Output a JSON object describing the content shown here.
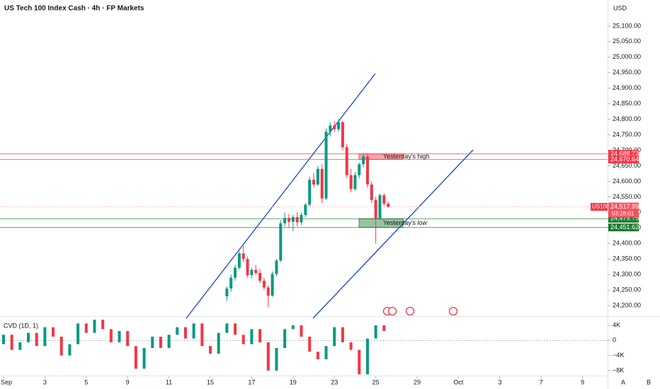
{
  "chart_data": {
    "type": "candlestick",
    "title": "US Tech 100 Index Cash · 4h · FP Markets",
    "currency": "USD",
    "symbol": "US100",
    "countdown": "03:28:01",
    "up_color": "#089981",
    "down_color": "#f23645",
    "x": [
      10.8,
      11.0,
      11.2,
      11.4,
      11.6,
      11.8,
      12.0,
      12.2,
      12.4,
      12.6,
      12.8,
      13.0,
      13.2,
      13.4,
      13.6,
      13.8,
      14.0,
      14.2,
      14.4,
      14.6,
      14.8,
      15.0,
      15.2,
      15.4,
      15.6,
      15.8,
      16.0,
      16.2,
      16.4,
      16.6,
      16.8,
      17.0,
      17.2,
      17.4,
      17.6,
      17.8,
      18.0,
      18.2,
      18.4,
      18.6
    ],
    "open": [
      24230,
      24255,
      24290,
      24322,
      24368,
      24350,
      24298,
      24315,
      24305,
      24280,
      24258,
      24232,
      24302,
      24345,
      24465,
      24482,
      24470,
      24485,
      24468,
      24492,
      24525,
      24605,
      24590,
      24640,
      24545,
      24760,
      24780,
      24768,
      24790,
      24710,
      24620,
      24575,
      24620,
      24655,
      24680,
      24590,
      24540,
      24480,
      24555,
      24528
    ],
    "high": [
      24262,
      24300,
      24330,
      24375,
      24392,
      24358,
      24322,
      24330,
      24318,
      24290,
      24265,
      24310,
      24350,
      24475,
      24500,
      24495,
      24492,
      24500,
      24500,
      24530,
      24615,
      24625,
      24650,
      24655,
      24770,
      24790,
      24795,
      24800,
      24795,
      24720,
      24640,
      24630,
      24660,
      24690,
      24690,
      24600,
      24550,
      24560,
      24562,
      24535
    ],
    "low": [
      24215,
      24245,
      24280,
      24315,
      24340,
      24290,
      24288,
      24298,
      24272,
      24250,
      24195,
      24228,
      24295,
      24340,
      24455,
      24450,
      24440,
      24455,
      24460,
      24485,
      24520,
      24580,
      24585,
      24530,
      24540,
      24745,
      24760,
      24760,
      24700,
      24610,
      24565,
      24570,
      24610,
      24645,
      24580,
      24530,
      24400,
      24475,
      24520,
      24515
    ],
    "close": [
      24255,
      24290,
      24322,
      24368,
      24350,
      24298,
      24315,
      24305,
      24280,
      24258,
      24232,
      24302,
      24345,
      24465,
      24482,
      24470,
      24485,
      24468,
      24492,
      24525,
      24605,
      24590,
      24640,
      24545,
      24760,
      24780,
      24768,
      24790,
      24710,
      24620,
      24575,
      24620,
      24655,
      24680,
      24590,
      24540,
      24480,
      24555,
      24528,
      24518
    ],
    "xlim": [
      -0.17,
      29.21
    ],
    "xticks": [
      {
        "value": 0,
        "label": "Sep"
      },
      {
        "value": 2,
        "label": "3"
      },
      {
        "value": 4,
        "label": "5"
      },
      {
        "value": 6,
        "label": "9"
      },
      {
        "value": 8,
        "label": "11"
      },
      {
        "value": 10,
        "label": "15"
      },
      {
        "value": 12,
        "label": "17"
      },
      {
        "value": 14,
        "label": "19"
      },
      {
        "value": 16,
        "label": "23"
      },
      {
        "value": 18,
        "label": "25"
      },
      {
        "value": 20,
        "label": "29"
      },
      {
        "value": 22,
        "label": "Oct"
      },
      {
        "value": 24,
        "label": "3"
      },
      {
        "value": 26,
        "label": "7"
      },
      {
        "value": 28,
        "label": "9"
      }
    ],
    "ylim": [
      24166,
      25184
    ],
    "yticks": [
      {
        "value": 24200,
        "label": "24,200.00"
      },
      {
        "value": 24250,
        "label": "24,250.00"
      },
      {
        "value": 24300,
        "label": "24,300.00"
      },
      {
        "value": 24350,
        "label": "24,350.00"
      },
      {
        "value": 24400,
        "label": "24,400.00"
      },
      {
        "value": 24450,
        "label": "24,450.00"
      },
      {
        "value": 24500,
        "label": "24,500.00"
      },
      {
        "value": 24550,
        "label": "24,550.00"
      },
      {
        "value": 24600,
        "label": "24,600.00"
      },
      {
        "value": 24650,
        "label": "24,650.00"
      },
      {
        "value": 24700,
        "label": "24,700.00"
      },
      {
        "value": 24750,
        "label": "24,750.00"
      },
      {
        "value": 24800,
        "label": "24,800.00"
      },
      {
        "value": 24850,
        "label": "24,850.00"
      },
      {
        "value": 24900,
        "label": "24,900.00"
      },
      {
        "value": 24950,
        "label": "24,950.00"
      },
      {
        "value": 25000,
        "label": "25,000.00"
      },
      {
        "value": 25050,
        "label": "25,050.00"
      },
      {
        "value": 25100,
        "label": "25,100.00"
      }
    ],
    "last_price": {
      "value": 24517.99,
      "label": "24,517.99"
    },
    "zones": [
      {
        "text": "Yesterday's high",
        "color": "#f23645",
        "levels": [
          {
            "value": 24688.73,
            "label": "24,688.73"
          },
          {
            "value": 24670.64,
            "label": "24,670.64"
          }
        ]
      },
      {
        "text": "Yesterday's low",
        "color": "#1b7a2e",
        "levels": [
          {
            "value": 24479.75,
            "label": "24,479.75"
          },
          {
            "value": 24451.62,
            "label": "24,451.62"
          }
        ]
      }
    ],
    "cvd": {
      "title": "CVD (1D, 1)",
      "x": [
        0,
        0.4,
        0.8,
        1.2,
        1.6,
        2.0,
        2.4,
        2.8,
        3.2,
        3.6,
        4.0,
        4.4,
        4.8,
        5.2,
        5.6,
        6.0,
        6.4,
        6.8,
        7.2,
        7.6,
        8.0,
        8.4,
        8.8,
        9.2,
        9.6,
        10.0,
        10.4,
        10.8,
        11.2,
        11.6,
        12.0,
        12.4,
        12.8,
        13.2,
        13.6,
        14.0,
        14.4,
        14.8,
        15.2,
        15.6,
        16.0,
        16.4,
        16.8,
        17.2,
        17.6,
        18.0,
        18.4
      ],
      "open": [
        -1000,
        1500,
        -2500,
        -500,
        2000,
        -1500,
        3500,
        1000,
        -4000,
        -1000,
        4500,
        2000,
        5500,
        3000,
        -500,
        2500,
        -1500,
        -7500,
        -2000,
        1000,
        -2000,
        1500,
        3500,
        500,
        4500,
        -1500,
        -3500,
        2000,
        4500,
        1500,
        -1000,
        3000,
        -500,
        -8000,
        -2000,
        3000,
        4000,
        1000,
        -3000,
        -5000,
        -1500,
        3500,
        -500,
        -2500,
        -9000,
        500,
        4000
      ],
      "close": [
        1500,
        -2500,
        -500,
        2000,
        -1500,
        3500,
        1000,
        -4000,
        -1000,
        4500,
        2000,
        5500,
        3000,
        -500,
        2500,
        -1500,
        -7500,
        -2000,
        1000,
        -2000,
        1500,
        3500,
        500,
        4500,
        -1500,
        -3500,
        2000,
        4500,
        1500,
        -1000,
        3000,
        -500,
        -8000,
        -2000,
        3000,
        4000,
        1000,
        -3000,
        -5000,
        -1500,
        3500,
        -500,
        -2500,
        -9000,
        500,
        4000,
        2500
      ],
      "ylim": [
        -9500,
        6250
      ],
      "yticks": [
        {
          "value": 4000,
          "label": "4K"
        },
        0,
        {
          "value": -4000,
          "label": "−4K"
        },
        {
          "value": -8000,
          "label": "−8K"
        }
      ]
    },
    "buttons": [
      "A",
      "B"
    ]
  }
}
